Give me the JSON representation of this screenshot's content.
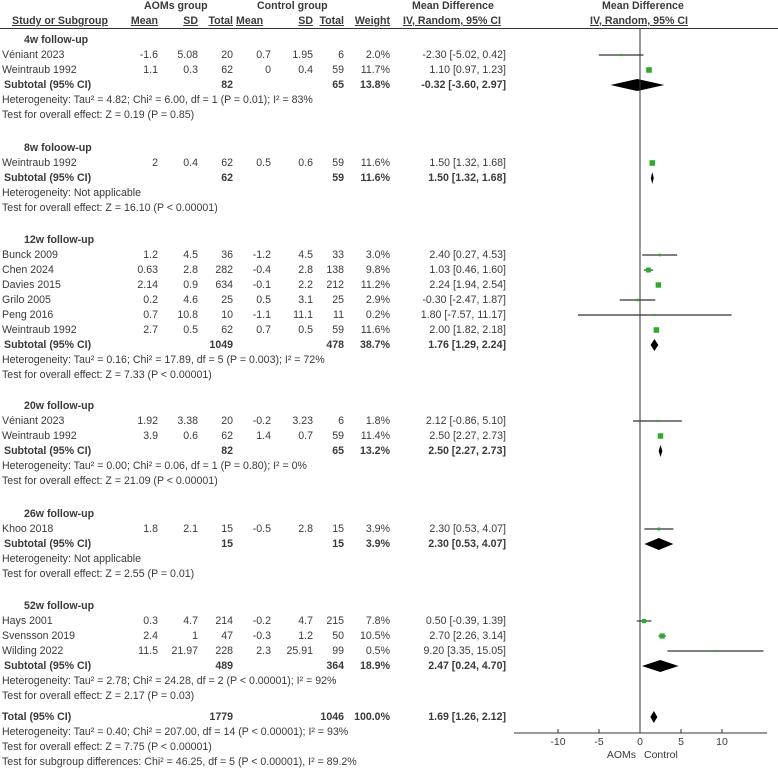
{
  "header": {
    "group1": "AOMs group",
    "group2": "Control group",
    "md_title": "Mean Difference",
    "md_plot_title": "Mean Difference",
    "cols": [
      "Study or Subgroup",
      "Mean",
      "SD",
      "Total",
      "Mean",
      "SD",
      "Total",
      "Weight",
      "IV, Random, 95% CI",
      "IV, Random, 95% CI"
    ]
  },
  "subgroups": [
    {
      "label": "4w follow-up",
      "studies": [
        {
          "name": "Véniant 2023",
          "m1": "-1.6",
          "sd1": "5.08",
          "n1": "20",
          "m2": "0.7",
          "sd2": "1.95",
          "n2": "6",
          "w": "2.0%",
          "ci": "-2.30 [-5.02, 0.42]",
          "md": -2.3,
          "lo": -5.02,
          "hi": 0.42
        },
        {
          "name": "Weintraub 1992",
          "m1": "1.1",
          "sd1": "0.3",
          "n1": "62",
          "m2": "0",
          "sd2": "0.4",
          "n2": "59",
          "w": "11.7%",
          "ci": "1.10 [0.97, 1.23]",
          "md": 1.1,
          "lo": 0.97,
          "hi": 1.23
        }
      ],
      "subtotal": {
        "label": "Subtotal (95% CI)",
        "n1": "82",
        "n2": "65",
        "w": "13.8%",
        "ci": "-0.32 [-3.60, 2.97]",
        "md": -0.32,
        "lo": -3.6,
        "hi": 2.97
      },
      "het": "Heterogeneity: Tau² = 4.82; Chi² = 6.00, df = 1 (P = 0.01); I² = 83%",
      "test": "Test for overall effect: Z = 0.19 (P = 0.85)"
    },
    {
      "label": "8w foloow-up",
      "studies": [
        {
          "name": "Weintraub 1992",
          "m1": "2",
          "sd1": "0.4",
          "n1": "62",
          "m2": "0.5",
          "sd2": "0.6",
          "n2": "59",
          "w": "11.6%",
          "ci": "1.50 [1.32, 1.68]",
          "md": 1.5,
          "lo": 1.32,
          "hi": 1.68
        }
      ],
      "subtotal": {
        "label": "Subtotal (95% CI)",
        "n1": "62",
        "n2": "59",
        "w": "11.6%",
        "ci": "1.50 [1.32, 1.68]",
        "md": 1.5,
        "lo": 1.32,
        "hi": 1.68
      },
      "het": "Heterogeneity: Not applicable",
      "test": "Test for overall effect: Z = 16.10 (P < 0.00001)"
    },
    {
      "label": "12w follow-up",
      "studies": [
        {
          "name": "Bunck 2009",
          "m1": "1.2",
          "sd1": "4.5",
          "n1": "36",
          "m2": "-1.2",
          "sd2": "4.5",
          "n2": "33",
          "w": "3.0%",
          "ci": "2.40 [0.27, 4.53]",
          "md": 2.4,
          "lo": 0.27,
          "hi": 4.53
        },
        {
          "name": "Chen 2024",
          "m1": "0.63",
          "sd1": "2.8",
          "n1": "282",
          "m2": "-0.4",
          "sd2": "2.8",
          "n2": "138",
          "w": "9.8%",
          "ci": "1.03 [0.46, 1.60]",
          "md": 1.03,
          "lo": 0.46,
          "hi": 1.6
        },
        {
          "name": "Davies 2015",
          "m1": "2.14",
          "sd1": "0.9",
          "n1": "634",
          "m2": "-0.1",
          "sd2": "2.2",
          "n2": "212",
          "w": "11.2%",
          "ci": "2.24 [1.94, 2.54]",
          "md": 2.24,
          "lo": 1.94,
          "hi": 2.54
        },
        {
          "name": "Grilo 2005",
          "m1": "0.2",
          "sd1": "4.6",
          "n1": "25",
          "m2": "0.5",
          "sd2": "3.1",
          "n2": "25",
          "w": "2.9%",
          "ci": "-0.30 [-2.47, 1.87]",
          "md": -0.3,
          "lo": -2.47,
          "hi": 1.87
        },
        {
          "name": "Peng 2016",
          "m1": "0.7",
          "sd1": "10.8",
          "n1": "10",
          "m2": "-1.1",
          "sd2": "11.1",
          "n2": "11",
          "w": "0.2%",
          "ci": "1.80 [-7.57, 11.17]",
          "md": 1.8,
          "lo": -7.57,
          "hi": 11.17
        },
        {
          "name": "Weintraub 1992",
          "m1": "2.7",
          "sd1": "0.5",
          "n1": "62",
          "m2": "0.7",
          "sd2": "0.5",
          "n2": "59",
          "w": "11.6%",
          "ci": "2.00 [1.82, 2.18]",
          "md": 2.0,
          "lo": 1.82,
          "hi": 2.18
        }
      ],
      "subtotal": {
        "label": "Subtotal (95% CI)",
        "n1": "1049",
        "n2": "478",
        "w": "38.7%",
        "ci": "1.76 [1.29, 2.24]",
        "md": 1.76,
        "lo": 1.29,
        "hi": 2.24
      },
      "het": "Heterogeneity: Tau² = 0.16; Chi² = 17.89, df = 5 (P = 0.003); I² = 72%",
      "test": "Test for overall effect: Z = 7.33 (P < 0.00001)"
    },
    {
      "label": "20w follow-up",
      "studies": [
        {
          "name": "Véniant 2023",
          "m1": "1.92",
          "sd1": "3.38",
          "n1": "20",
          "m2": "-0.2",
          "sd2": "3.23",
          "n2": "6",
          "w": "1.8%",
          "ci": "2.12 [-0.86, 5.10]",
          "md": 2.12,
          "lo": -0.86,
          "hi": 5.1
        },
        {
          "name": "Weintraub 1992",
          "m1": "3.9",
          "sd1": "0.6",
          "n1": "62",
          "m2": "1.4",
          "sd2": "0.7",
          "n2": "59",
          "w": "11.4%",
          "ci": "2.50 [2.27, 2.73]",
          "md": 2.5,
          "lo": 2.27,
          "hi": 2.73
        }
      ],
      "subtotal": {
        "label": "Subtotal (95% CI)",
        "n1": "82",
        "n2": "65",
        "w": "13.2%",
        "ci": "2.50 [2.27, 2.73]",
        "md": 2.5,
        "lo": 2.27,
        "hi": 2.73
      },
      "het": "Heterogeneity: Tau² = 0.00; Chi² = 0.06, df = 1 (P = 0.80); I² = 0%",
      "test": "Test for overall effect: Z = 21.09 (P < 0.00001)"
    },
    {
      "label": "26w follow-up",
      "studies": [
        {
          "name": "Khoo 2018",
          "m1": "1.8",
          "sd1": "2.1",
          "n1": "15",
          "m2": "-0.5",
          "sd2": "2.8",
          "n2": "15",
          "w": "3.9%",
          "ci": "2.30 [0.53, 4.07]",
          "md": 2.3,
          "lo": 0.53,
          "hi": 4.07
        }
      ],
      "subtotal": {
        "label": "Subtotal (95% CI)",
        "n1": "15",
        "n2": "15",
        "w": "3.9%",
        "ci": "2.30 [0.53, 4.07]",
        "md": 2.3,
        "lo": 0.53,
        "hi": 4.07
      },
      "het": "Heterogeneity: Not applicable",
      "test": "Test for overall effect: Z = 2.55 (P = 0.01)"
    },
    {
      "label": "52w follow-up",
      "studies": [
        {
          "name": "Hays 2001",
          "m1": "0.3",
          "sd1": "4.7",
          "n1": "214",
          "m2": "-0.2",
          "sd2": "4.7",
          "n2": "215",
          "w": "7.8%",
          "ci": "0.50 [-0.39, 1.39]",
          "md": 0.5,
          "lo": -0.39,
          "hi": 1.39
        },
        {
          "name": "Svensson 2019",
          "m1": "2.4",
          "sd1": "1",
          "n1": "47",
          "m2": "-0.3",
          "sd2": "1.2",
          "n2": "50",
          "w": "10.5%",
          "ci": "2.70 [2.26, 3.14]",
          "md": 2.7,
          "lo": 2.26,
          "hi": 3.14
        },
        {
          "name": "Wilding 2022",
          "m1": "11.5",
          "sd1": "21.97",
          "n1": "228",
          "m2": "2.3",
          "sd2": "25.91",
          "n2": "99",
          "w": "0.5%",
          "ci": "9.20 [3.35, 15.05]",
          "md": 9.2,
          "lo": 3.35,
          "hi": 15.05
        }
      ],
      "subtotal": {
        "label": "Subtotal (95% CI)",
        "n1": "489",
        "n2": "364",
        "w": "18.9%",
        "ci": "2.47 [0.24, 4.70]",
        "md": 2.47,
        "lo": 0.24,
        "hi": 4.7
      },
      "het": "Heterogeneity: Tau² = 2.78; Chi² = 24.28, df = 2 (P < 0.00001); I² = 92%",
      "test": "Test for overall effect: Z = 2.17 (P = 0.03)"
    }
  ],
  "total": {
    "label": "Total (95% CI)",
    "n1": "1779",
    "n2": "1046",
    "w": "100.0%",
    "ci": "1.69 [1.26, 2.12]",
    "md": 1.69,
    "lo": 1.26,
    "hi": 2.12,
    "het": "Heterogeneity: Tau² = 0.40; Chi² = 207.00, df = 14 (P < 0.00001); I² = 93%",
    "test": "Test for overall effect: Z = 7.75 (P < 0.00001)",
    "subgroup_test": "Test for subgroup differences: Chi² = 46.25, df = 5 (P < 0.00001), I² = 89.2%"
  },
  "axis": {
    "ticks": [
      -10,
      -5,
      0,
      5,
      10
    ],
    "xlim": [
      -15.5,
      15.5
    ],
    "left_label": "AOMs",
    "right_label": "Control"
  },
  "colors": {
    "study_point": "#2eaa2e",
    "diamond": "#000000",
    "line": "#333333",
    "text": "#3a3a3a"
  },
  "chart_data": {
    "type": "forest",
    "title": "Mean Difference IV, Random, 95% CI",
    "xlabel": "AOMs / Control",
    "xlim": [
      -15,
      15
    ],
    "ticks": [
      -10,
      -5,
      0,
      5,
      10
    ],
    "series": [
      {
        "subgroup": "4w follow-up",
        "study": "Véniant 2023",
        "md": -2.3,
        "lo": -5.02,
        "hi": 0.42,
        "weight": 2.0
      },
      {
        "subgroup": "4w follow-up",
        "study": "Weintraub 1992",
        "md": 1.1,
        "lo": 0.97,
        "hi": 1.23,
        "weight": 11.7
      },
      {
        "subgroup": "4w follow-up",
        "study": "Subtotal",
        "md": -0.32,
        "lo": -3.6,
        "hi": 2.97,
        "weight": 13.8
      },
      {
        "subgroup": "8w foloow-up",
        "study": "Weintraub 1992",
        "md": 1.5,
        "lo": 1.32,
        "hi": 1.68,
        "weight": 11.6
      },
      {
        "subgroup": "8w foloow-up",
        "study": "Subtotal",
        "md": 1.5,
        "lo": 1.32,
        "hi": 1.68,
        "weight": 11.6
      },
      {
        "subgroup": "12w follow-up",
        "study": "Bunck 2009",
        "md": 2.4,
        "lo": 0.27,
        "hi": 4.53,
        "weight": 3.0
      },
      {
        "subgroup": "12w follow-up",
        "study": "Chen 2024",
        "md": 1.03,
        "lo": 0.46,
        "hi": 1.6,
        "weight": 9.8
      },
      {
        "subgroup": "12w follow-up",
        "study": "Davies 2015",
        "md": 2.24,
        "lo": 1.94,
        "hi": 2.54,
        "weight": 11.2
      },
      {
        "subgroup": "12w follow-up",
        "study": "Grilo 2005",
        "md": -0.3,
        "lo": -2.47,
        "hi": 1.87,
        "weight": 2.9
      },
      {
        "subgroup": "12w follow-up",
        "study": "Peng 2016",
        "md": 1.8,
        "lo": -7.57,
        "hi": 11.17,
        "weight": 0.2
      },
      {
        "subgroup": "12w follow-up",
        "study": "Weintraub 1992",
        "md": 2.0,
        "lo": 1.82,
        "hi": 2.18,
        "weight": 11.6
      },
      {
        "subgroup": "12w follow-up",
        "study": "Subtotal",
        "md": 1.76,
        "lo": 1.29,
        "hi": 2.24,
        "weight": 38.7
      },
      {
        "subgroup": "20w follow-up",
        "study": "Véniant 2023",
        "md": 2.12,
        "lo": -0.86,
        "hi": 5.1,
        "weight": 1.8
      },
      {
        "subgroup": "20w follow-up",
        "study": "Weintraub 1992",
        "md": 2.5,
        "lo": 2.27,
        "hi": 2.73,
        "weight": 11.4
      },
      {
        "subgroup": "20w follow-up",
        "study": "Subtotal",
        "md": 2.5,
        "lo": 2.27,
        "hi": 2.73,
        "weight": 13.2
      },
      {
        "subgroup": "26w follow-up",
        "study": "Khoo 2018",
        "md": 2.3,
        "lo": 0.53,
        "hi": 4.07,
        "weight": 3.9
      },
      {
        "subgroup": "26w follow-up",
        "study": "Subtotal",
        "md": 2.3,
        "lo": 0.53,
        "hi": 4.07,
        "weight": 3.9
      },
      {
        "subgroup": "52w follow-up",
        "study": "Hays 2001",
        "md": 0.5,
        "lo": -0.39,
        "hi": 1.39,
        "weight": 7.8
      },
      {
        "subgroup": "52w follow-up",
        "study": "Svensson 2019",
        "md": 2.7,
        "lo": 2.26,
        "hi": 3.14,
        "weight": 10.5
      },
      {
        "subgroup": "52w follow-up",
        "study": "Wilding 2022",
        "md": 9.2,
        "lo": 3.35,
        "hi": 15.05,
        "weight": 0.5
      },
      {
        "subgroup": "52w follow-up",
        "study": "Subtotal",
        "md": 2.47,
        "lo": 0.24,
        "hi": 4.7,
        "weight": 18.9
      },
      {
        "subgroup": "Overall",
        "study": "Total",
        "md": 1.69,
        "lo": 1.26,
        "hi": 2.12,
        "weight": 100.0
      }
    ]
  }
}
